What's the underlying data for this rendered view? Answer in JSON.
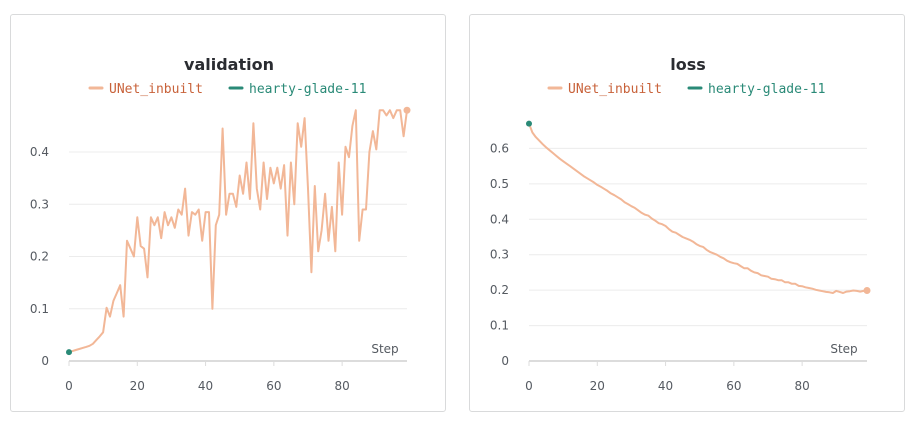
{
  "colors": {
    "unet": "#f2b797",
    "unet_text": "#c8623a",
    "hearty": "#2a8a77",
    "grid": "#ececec",
    "axis": "#dcdcdc"
  },
  "chart_data": [
    {
      "type": "line",
      "title": "validation",
      "xlabel": "Step",
      "ylabel": "",
      "xlim": [
        0,
        99
      ],
      "ylim": [
        0,
        0.49
      ],
      "xticks": [
        "0",
        "20",
        "40",
        "60",
        "80"
      ],
      "yticks": [
        "0",
        "0.1",
        "0.2",
        "0.3",
        "0.4"
      ],
      "legend": "top-center",
      "series": [
        {
          "name": "UNet_inbuilt",
          "x": [
            0,
            1,
            2,
            3,
            4,
            5,
            6,
            7,
            8,
            9,
            10,
            11,
            12,
            13,
            14,
            15,
            16,
            17,
            18,
            19,
            20,
            21,
            22,
            23,
            24,
            25,
            26,
            27,
            28,
            29,
            30,
            31,
            32,
            33,
            34,
            35,
            36,
            37,
            38,
            39,
            40,
            41,
            42,
            43,
            44,
            45,
            46,
            47,
            48,
            49,
            50,
            51,
            52,
            53,
            54,
            55,
            56,
            57,
            58,
            59,
            60,
            61,
            62,
            63,
            64,
            65,
            66,
            67,
            68,
            69,
            70,
            71,
            72,
            73,
            74,
            75,
            76,
            77,
            78,
            79,
            80,
            81,
            82,
            83,
            84,
            85,
            86,
            87,
            88,
            89,
            90,
            91,
            92,
            93,
            94,
            95,
            96,
            97,
            98,
            99
          ],
          "values": [
            0.017,
            0.019,
            0.021,
            0.023,
            0.025,
            0.027,
            0.029,
            0.033,
            0.04,
            0.047,
            0.055,
            0.102,
            0.085,
            0.115,
            0.13,
            0.145,
            0.085,
            0.23,
            0.215,
            0.2,
            0.275,
            0.22,
            0.215,
            0.16,
            0.275,
            0.26,
            0.275,
            0.235,
            0.285,
            0.26,
            0.275,
            0.255,
            0.29,
            0.28,
            0.33,
            0.24,
            0.285,
            0.28,
            0.29,
            0.23,
            0.285,
            0.285,
            0.1,
            0.26,
            0.28,
            0.445,
            0.28,
            0.32,
            0.32,
            0.295,
            0.355,
            0.32,
            0.38,
            0.31,
            0.455,
            0.33,
            0.29,
            0.38,
            0.31,
            0.37,
            0.34,
            0.37,
            0.33,
            0.375,
            0.24,
            0.38,
            0.3,
            0.455,
            0.41,
            0.465,
            0.33,
            0.17,
            0.335,
            0.21,
            0.25,
            0.32,
            0.23,
            0.295,
            0.21,
            0.38,
            0.28,
            0.41,
            0.39,
            0.45,
            0.48,
            0.23,
            0.29,
            0.29,
            0.4,
            0.44,
            0.405,
            0.48,
            0.48,
            0.47,
            0.48,
            0.465,
            0.48,
            0.48,
            0.43,
            0.48
          ]
        },
        {
          "name": "hearty-glade-11",
          "x": [
            0
          ],
          "values": [
            0.017
          ]
        }
      ]
    },
    {
      "type": "line",
      "title": "loss",
      "xlabel": "Step",
      "ylabel": "",
      "xlim": [
        0,
        99
      ],
      "ylim": [
        0,
        0.7
      ],
      "xticks": [
        "0",
        "20",
        "40",
        "60",
        "80"
      ],
      "yticks": [
        "0",
        "0.1",
        "0.2",
        "0.3",
        "0.4",
        "0.5",
        "0.6"
      ],
      "legend": "top-center",
      "series": [
        {
          "name": "UNet_inbuilt",
          "x": [
            0,
            1,
            2,
            3,
            4,
            5,
            6,
            7,
            8,
            9,
            10,
            11,
            12,
            13,
            14,
            15,
            16,
            17,
            18,
            19,
            20,
            21,
            22,
            23,
            24,
            25,
            26,
            27,
            28,
            29,
            30,
            31,
            32,
            33,
            34,
            35,
            36,
            37,
            38,
            39,
            40,
            41,
            42,
            43,
            44,
            45,
            46,
            47,
            48,
            49,
            50,
            51,
            52,
            53,
            54,
            55,
            56,
            57,
            58,
            59,
            60,
            61,
            62,
            63,
            64,
            65,
            66,
            67,
            68,
            69,
            70,
            71,
            72,
            73,
            74,
            75,
            76,
            77,
            78,
            79,
            80,
            81,
            82,
            83,
            84,
            85,
            86,
            87,
            88,
            89,
            90,
            91,
            92,
            93,
            94,
            95,
            96,
            97,
            98,
            99
          ],
          "values": [
            0.67,
            0.645,
            0.632,
            0.622,
            0.612,
            0.603,
            0.595,
            0.587,
            0.579,
            0.571,
            0.564,
            0.557,
            0.55,
            0.543,
            0.536,
            0.529,
            0.522,
            0.516,
            0.51,
            0.504,
            0.497,
            0.492,
            0.486,
            0.48,
            0.473,
            0.468,
            0.462,
            0.456,
            0.448,
            0.443,
            0.437,
            0.432,
            0.425,
            0.418,
            0.413,
            0.41,
            0.402,
            0.396,
            0.389,
            0.386,
            0.381,
            0.372,
            0.365,
            0.362,
            0.356,
            0.35,
            0.346,
            0.342,
            0.337,
            0.33,
            0.325,
            0.322,
            0.314,
            0.308,
            0.304,
            0.3,
            0.294,
            0.29,
            0.283,
            0.279,
            0.276,
            0.274,
            0.268,
            0.262,
            0.262,
            0.255,
            0.25,
            0.248,
            0.242,
            0.24,
            0.238,
            0.232,
            0.231,
            0.228,
            0.228,
            0.222,
            0.222,
            0.218,
            0.218,
            0.212,
            0.211,
            0.208,
            0.206,
            0.204,
            0.201,
            0.199,
            0.197,
            0.195,
            0.194,
            0.192,
            0.198,
            0.195,
            0.192,
            0.196,
            0.197,
            0.199,
            0.198,
            0.196,
            0.198,
            0.199
          ]
        },
        {
          "name": "hearty-glade-11",
          "x": [
            0
          ],
          "values": [
            0.67
          ]
        }
      ]
    }
  ]
}
